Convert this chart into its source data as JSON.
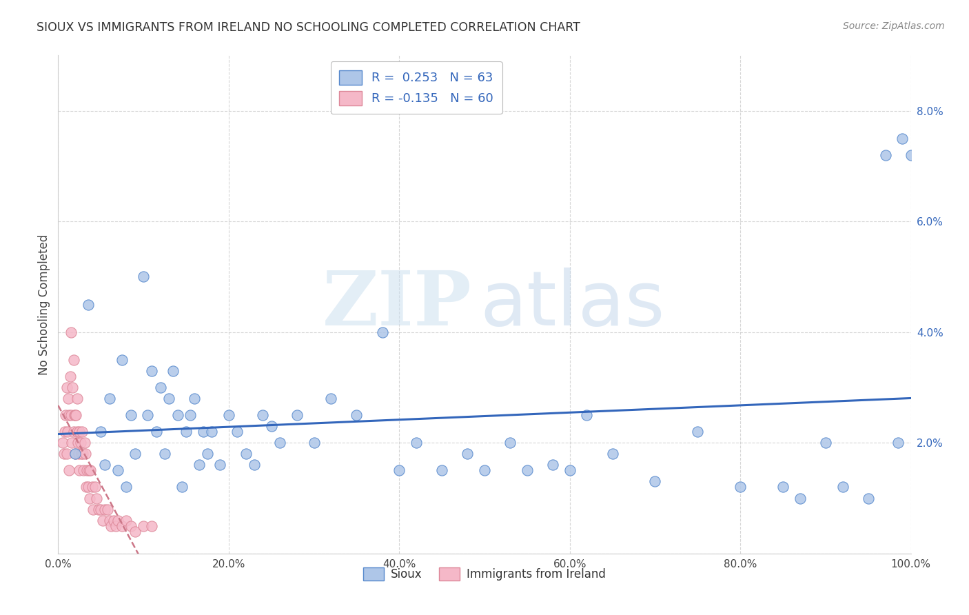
{
  "title": "SIOUX VS IMMIGRANTS FROM IRELAND NO SCHOOLING COMPLETED CORRELATION CHART",
  "source": "Source: ZipAtlas.com",
  "ylabel": "No Schooling Completed",
  "sioux_R": 0.253,
  "sioux_N": 63,
  "ireland_R": -0.135,
  "ireland_N": 60,
  "sioux_color": "#aec6e8",
  "ireland_color": "#f5b8c8",
  "sioux_edge_color": "#5588cc",
  "ireland_edge_color": "#dd8899",
  "sioux_line_color": "#3366bb",
  "ireland_line_color": "#cc7788",
  "xlim": [
    0,
    1.0
  ],
  "ylim": [
    0,
    0.09
  ],
  "sioux_x": [
    0.02,
    0.035,
    0.05,
    0.055,
    0.06,
    0.07,
    0.075,
    0.08,
    0.085,
    0.09,
    0.1,
    0.105,
    0.11,
    0.115,
    0.12,
    0.125,
    0.13,
    0.135,
    0.14,
    0.145,
    0.15,
    0.155,
    0.16,
    0.165,
    0.17,
    0.175,
    0.18,
    0.19,
    0.2,
    0.21,
    0.22,
    0.23,
    0.24,
    0.25,
    0.26,
    0.28,
    0.3,
    0.32,
    0.35,
    0.38,
    0.4,
    0.42,
    0.45,
    0.48,
    0.5,
    0.53,
    0.55,
    0.58,
    0.6,
    0.62,
    0.65,
    0.7,
    0.75,
    0.8,
    0.85,
    0.87,
    0.9,
    0.92,
    0.95,
    0.97,
    0.985,
    0.99,
    1.0
  ],
  "sioux_y": [
    0.018,
    0.045,
    0.022,
    0.016,
    0.028,
    0.015,
    0.035,
    0.012,
    0.025,
    0.018,
    0.05,
    0.025,
    0.033,
    0.022,
    0.03,
    0.018,
    0.028,
    0.033,
    0.025,
    0.012,
    0.022,
    0.025,
    0.028,
    0.016,
    0.022,
    0.018,
    0.022,
    0.016,
    0.025,
    0.022,
    0.018,
    0.016,
    0.025,
    0.023,
    0.02,
    0.025,
    0.02,
    0.028,
    0.025,
    0.04,
    0.015,
    0.02,
    0.015,
    0.018,
    0.015,
    0.02,
    0.015,
    0.016,
    0.015,
    0.025,
    0.018,
    0.013,
    0.022,
    0.012,
    0.012,
    0.01,
    0.02,
    0.012,
    0.01,
    0.072,
    0.02,
    0.075,
    0.072
  ],
  "ireland_x": [
    0.005,
    0.007,
    0.008,
    0.009,
    0.01,
    0.01,
    0.011,
    0.012,
    0.013,
    0.013,
    0.014,
    0.015,
    0.015,
    0.016,
    0.017,
    0.018,
    0.018,
    0.019,
    0.02,
    0.02,
    0.021,
    0.022,
    0.022,
    0.023,
    0.024,
    0.025,
    0.025,
    0.026,
    0.027,
    0.028,
    0.029,
    0.03,
    0.031,
    0.032,
    0.033,
    0.034,
    0.035,
    0.036,
    0.037,
    0.038,
    0.04,
    0.041,
    0.043,
    0.045,
    0.047,
    0.05,
    0.052,
    0.055,
    0.058,
    0.06,
    0.062,
    0.065,
    0.068,
    0.07,
    0.075,
    0.08,
    0.085,
    0.09,
    0.1,
    0.11
  ],
  "ireland_y": [
    0.02,
    0.018,
    0.022,
    0.025,
    0.018,
    0.03,
    0.022,
    0.028,
    0.025,
    0.015,
    0.032,
    0.04,
    0.025,
    0.02,
    0.03,
    0.022,
    0.035,
    0.025,
    0.025,
    0.018,
    0.025,
    0.028,
    0.022,
    0.02,
    0.018,
    0.022,
    0.015,
    0.02,
    0.018,
    0.022,
    0.018,
    0.015,
    0.02,
    0.018,
    0.012,
    0.015,
    0.012,
    0.015,
    0.01,
    0.015,
    0.012,
    0.008,
    0.012,
    0.01,
    0.008,
    0.008,
    0.006,
    0.008,
    0.008,
    0.006,
    0.005,
    0.006,
    0.005,
    0.006,
    0.005,
    0.006,
    0.005,
    0.004,
    0.005,
    0.005
  ]
}
